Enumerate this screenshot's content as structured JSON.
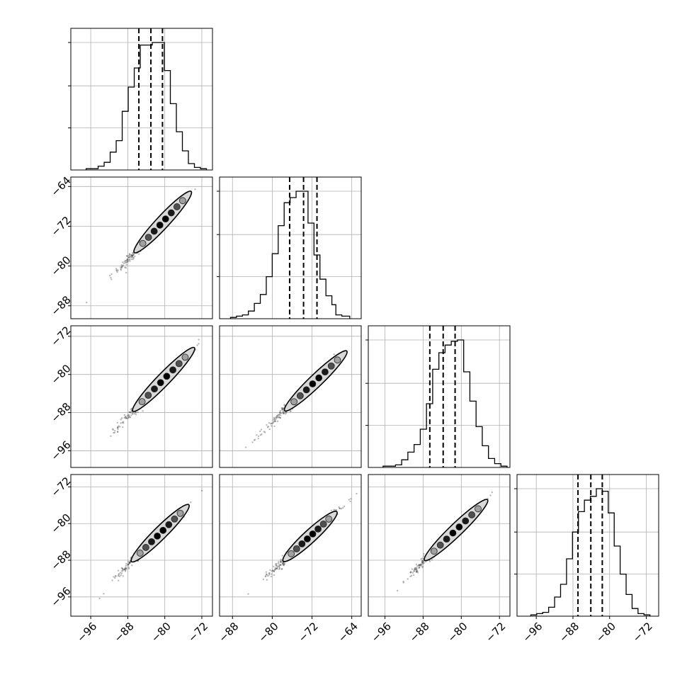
{
  "chart_data": {
    "type": "corner",
    "title": "",
    "n_params": 4,
    "param_labels": [
      "",
      "",
      "",
      ""
    ],
    "quantiles": [
      [
        -85.6,
        -83.0,
        -80.5
      ],
      [
        -76.5,
        -73.7,
        -71.0
      ],
      [
        -86.6,
        -83.8,
        -81.3
      ],
      [
        -86.9,
        -84.1,
        -81.6
      ]
    ],
    "axis_ranges": [
      [
        -100.3,
        -69.7
      ],
      [
        -90.6,
        -62.1
      ],
      [
        -99.5,
        -69.8
      ],
      [
        -100.2,
        -69.3
      ]
    ],
    "tick_values": [
      [
        -96,
        -88,
        -80,
        -72
      ],
      [
        -88,
        -80,
        -72,
        -64
      ],
      [
        -96,
        -88,
        -80,
        -72
      ],
      [
        -96,
        -88,
        -80,
        -72
      ]
    ],
    "tick_labels": [
      [
        "−96",
        "−88",
        "−80",
        "−72"
      ],
      [
        "−88",
        "−80",
        "−72",
        "−64"
      ],
      [
        "−96",
        "−88",
        "−80",
        "−72"
      ],
      [
        "−96",
        "−88",
        "−80",
        "−72"
      ]
    ],
    "histograms": [
      {
        "bins": [
          -97,
          -95.7,
          -94.4,
          -93.1,
          -91.8,
          -90.5,
          -89.2,
          -87.9,
          -86.6,
          -85.3,
          -84.0,
          -82.7,
          -81.4,
          -80.1,
          -78.8,
          -77.5,
          -76.2,
          -74.9,
          -73.6,
          -72.3,
          -71.0
        ],
        "counts": [
          1,
          1,
          3,
          6,
          14,
          23,
          46,
          65,
          80,
          98,
          98,
          100,
          100,
          78,
          52,
          30,
          15,
          5,
          2,
          1
        ]
      },
      {
        "bins": [
          -88.4,
          -87.2,
          -86.0,
          -84.8,
          -83.6,
          -82.4,
          -81.2,
          -80.0,
          -78.8,
          -77.6,
          -76.4,
          -75.2,
          -74.0,
          -72.8,
          -71.6,
          -70.4,
          -69.2,
          -68.0,
          -67.2,
          -66.0,
          -64.4
        ],
        "counts": [
          1,
          2,
          3,
          6,
          12,
          19,
          33,
          51,
          73,
          91,
          95,
          100,
          100,
          75,
          50,
          31,
          18,
          11,
          3,
          2
        ]
      },
      {
        "bins": [
          -96.4,
          -95.1,
          -93.8,
          -92.5,
          -91.2,
          -89.9,
          -88.6,
          -87.3,
          -86.0,
          -84.7,
          -83.4,
          -82.1,
          -80.8,
          -79.5,
          -78.2,
          -76.9,
          -75.6,
          -74.3,
          -73.0,
          -71.7,
          -70.4
        ],
        "counts": [
          1,
          1,
          2,
          6,
          12,
          18,
          30,
          50,
          77,
          90,
          96,
          99,
          100,
          75,
          52,
          32,
          17,
          7,
          3,
          1
        ]
      },
      {
        "bins": [
          -97.2,
          -95.9,
          -94.6,
          -93.3,
          -92.0,
          -90.7,
          -89.4,
          -88.1,
          -86.8,
          -85.5,
          -84.2,
          -82.9,
          -81.6,
          -80.3,
          -79.0,
          -77.7,
          -76.4,
          -75.1,
          -73.8,
          -72.5,
          -71.2
        ],
        "counts": [
          1,
          2,
          3,
          7,
          15,
          25,
          45,
          66,
          82,
          91,
          94,
          100,
          98,
          81,
          55,
          33,
          17,
          6,
          2,
          1
        ]
      }
    ],
    "contours": [
      {
        "row": 1,
        "col": 0,
        "slope": 1.0,
        "x_range": [
          -86.6,
          -74.3
        ]
      },
      {
        "row": 2,
        "col": 0,
        "slope": 1.0,
        "x_range": [
          -86.9,
          -73.6
        ]
      },
      {
        "row": 2,
        "col": 1,
        "slope": 1.0,
        "x_range": [
          -77.5,
          -65.0
        ]
      },
      {
        "row": 3,
        "col": 0,
        "slope": 1.0,
        "x_range": [
          -87.2,
          -74.8
        ]
      },
      {
        "row": 3,
        "col": 1,
        "slope": 1.0,
        "x_range": [
          -77.8,
          -67.0
        ]
      },
      {
        "row": 3,
        "col": 2,
        "slope": 1.0,
        "x_range": [
          -87.7,
          -74.5
        ]
      }
    ],
    "grid": true,
    "legend": "none"
  }
}
